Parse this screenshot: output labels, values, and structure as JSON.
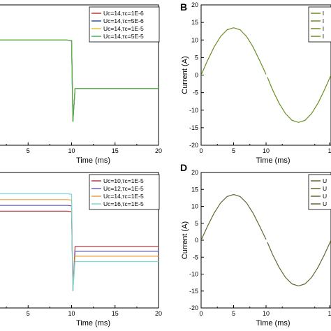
{
  "chart_data": [
    {
      "type": "line",
      "xlabel": "Time (ms)",
      "ylabel": "",
      "xlim": [
        0,
        20
      ],
      "ylim": [
        -16,
        12
      ],
      "x_ticks": [
        "5",
        "10",
        "15",
        "20"
      ],
      "y_ticks": [],
      "legend": [
        "Uc=14,τc=1E-6",
        "Uc=14,τc=5E-6",
        "Uc=14,τc=1E-5",
        "Uc=14,τc=5E-5"
      ],
      "legend_position": "top-right",
      "series": [
        {
          "name": "Uc=14,τc=1E-6",
          "color": "#c0392b",
          "x": [
            0,
            9.4,
            10,
            10.15,
            10.4,
            20
          ],
          "y": [
            5.0,
            5.0,
            4.9,
            -11.3,
            -4.7,
            -4.7
          ]
        },
        {
          "name": "Uc=14,τc=5E-6",
          "color": "#2b4fb5",
          "x": [
            0,
            9.4,
            10,
            10.15,
            10.4,
            20
          ],
          "y": [
            5.0,
            5.0,
            4.9,
            -11.3,
            -4.7,
            -4.7
          ]
        },
        {
          "name": "Uc=14,τc=1E-5",
          "color": "#e6c229",
          "x": [
            0,
            9.4,
            10,
            10.15,
            10.4,
            20
          ],
          "y": [
            5.0,
            5.0,
            4.9,
            -11.3,
            -4.7,
            -4.7
          ]
        },
        {
          "name": "Uc=14,τc=5E-5",
          "color": "#4caf50",
          "x": [
            0,
            9.4,
            10,
            10.15,
            10.4,
            20
          ],
          "y": [
            5.0,
            5.0,
            4.9,
            -11.3,
            -4.7,
            -4.7
          ]
        }
      ]
    },
    {
      "type": "line",
      "panel": "B",
      "xlabel": "Time (ms)",
      "ylabel": "Current (A)",
      "xlim": [
        0,
        20
      ],
      "ylim": [
        -20,
        20
      ],
      "x_ticks": [
        "0",
        "5",
        "10",
        "1"
      ],
      "y_ticks": [
        "-20",
        "-15",
        "-10",
        "-5",
        "0",
        "5",
        "10",
        "15",
        "20"
      ],
      "legend": [
        "l",
        "l",
        "l",
        "l"
      ],
      "legend_position": "top-right",
      "series": [
        {
          "color": "#6b8e23",
          "x": [
            0,
            1,
            2,
            3,
            4,
            5,
            6,
            7,
            8,
            9,
            10
          ],
          "y": [
            0,
            4.2,
            8.0,
            11.0,
            12.9,
            13.5,
            12.9,
            11.0,
            8.0,
            4.2,
            0.2
          ]
        },
        {
          "color": "#6b8e23",
          "x": [
            10.2,
            11,
            12,
            13,
            14,
            15,
            16,
            17,
            18,
            19,
            20
          ],
          "y": [
            -0.6,
            -4.2,
            -8.0,
            -11.0,
            -12.9,
            -13.5,
            -12.9,
            -11.0,
            -8.0,
            -4.2,
            0
          ]
        }
      ]
    },
    {
      "type": "line",
      "xlabel": "Time (ms)",
      "ylabel": "",
      "xlim": [
        0,
        20
      ],
      "ylim": [
        -16,
        12
      ],
      "x_ticks": [
        "5",
        "10",
        "15",
        "20"
      ],
      "y_ticks": [],
      "legend": [
        "Uc=10,τc=1E-5",
        "Uc=12,τc=1E-5",
        "Uc=14,τc=1E-5",
        "Uc=16,τc=1E-5"
      ],
      "legend_position": "top-right",
      "series": [
        {
          "name": "Uc=10,τc=1E-5",
          "color": "#b03a48",
          "x": [
            0,
            9.5,
            10,
            10.15,
            10.4,
            20
          ],
          "y": [
            4.0,
            4.0,
            3.9,
            -12.5,
            -3.3,
            -3.3
          ]
        },
        {
          "name": "Uc=12,τc=1E-5",
          "color": "#6a5acd",
          "x": [
            0,
            9.5,
            10,
            10.15,
            10.4,
            20
          ],
          "y": [
            5.2,
            5.2,
            5.1,
            -12.5,
            -4.3,
            -4.3
          ]
        },
        {
          "name": "Uc=14,τc=1E-5",
          "color": "#e6a23c",
          "x": [
            0,
            9.5,
            10,
            10.15,
            10.4,
            20
          ],
          "y": [
            6.4,
            6.4,
            6.3,
            -12.5,
            -5.3,
            -5.3
          ]
        },
        {
          "name": "Uc=16,τc=1E-5",
          "color": "#7fd6d6",
          "x": [
            0,
            9.5,
            10,
            10.15,
            10.4,
            20
          ],
          "y": [
            7.6,
            7.6,
            7.5,
            -12.5,
            -6.4,
            -6.4
          ]
        }
      ]
    },
    {
      "type": "line",
      "panel": "D",
      "xlabel": "Time (ms)",
      "ylabel": "Current (A)",
      "xlim": [
        0,
        20
      ],
      "ylim": [
        -20,
        20
      ],
      "x_ticks": [
        "0",
        "5",
        "10",
        "1"
      ],
      "y_ticks": [
        "-20",
        "-15",
        "-10",
        "-5",
        "0",
        "5",
        "10",
        "15",
        "20"
      ],
      "legend": [
        "U",
        "U",
        "U",
        "U"
      ],
      "legend_position": "top-right",
      "series": [
        {
          "color": "#5c6b2e",
          "x": [
            0,
            1,
            2,
            3,
            4,
            5,
            6,
            7,
            8,
            9,
            10
          ],
          "y": [
            0,
            4.2,
            8.0,
            11.0,
            12.9,
            13.5,
            12.9,
            11.0,
            8.0,
            4.2,
            0.2
          ]
        },
        {
          "color": "#5c6b2e",
          "x": [
            10.2,
            11,
            12,
            13,
            14,
            15,
            16,
            17,
            18,
            19,
            20
          ],
          "y": [
            -0.6,
            -4.2,
            -8.0,
            -11.0,
            -12.9,
            -13.5,
            -12.9,
            -11.0,
            -8.0,
            -4.2,
            0
          ]
        }
      ]
    }
  ]
}
